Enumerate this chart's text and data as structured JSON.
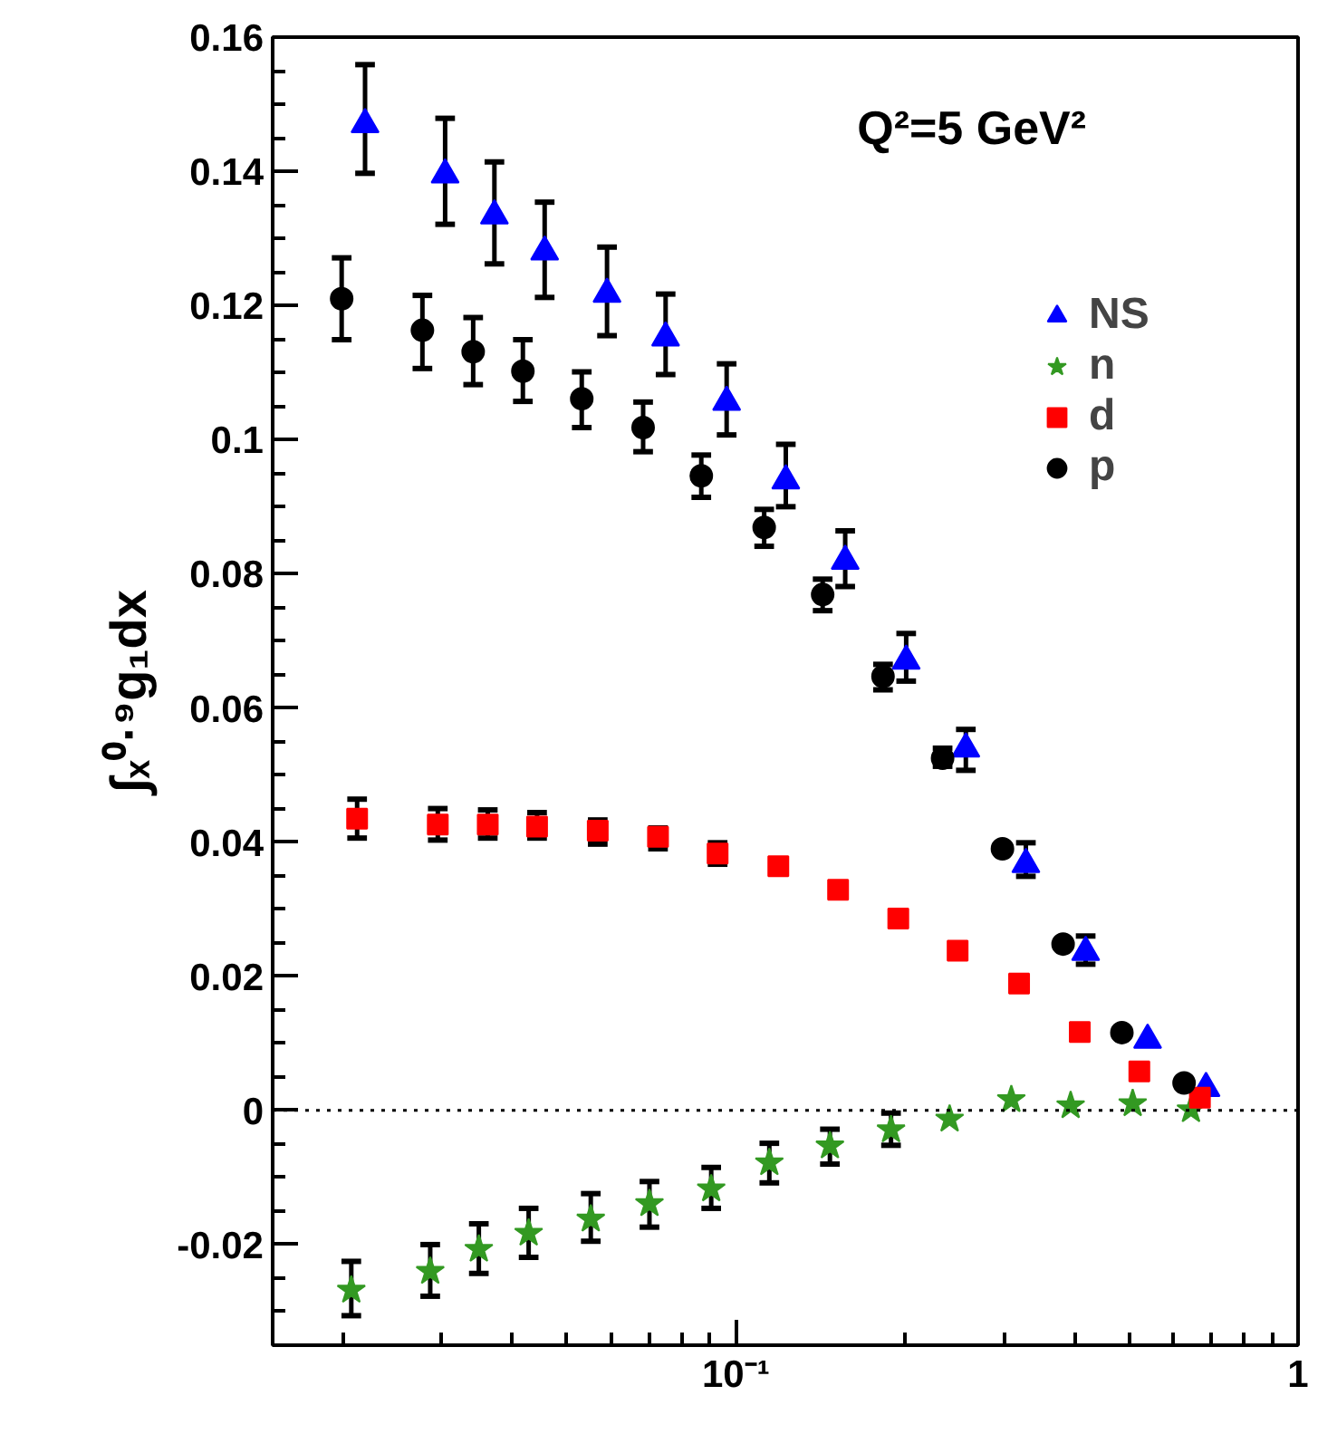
{
  "chart_data": {
    "type": "scatter",
    "ylabel": "∫ₓ⁰·⁹g₁dx",
    "annotations": [
      "Q²=5 GeV²"
    ],
    "log": "x",
    "xlim": [
      0.015,
      1
    ],
    "xticks": [
      {
        "value": 0.1,
        "label": "10⁻¹"
      },
      1
    ],
    "ylim": [
      -0.035,
      0.16
    ],
    "yticks": [
      -0.02,
      0,
      0.02,
      0.04,
      0.06,
      0.08,
      0.1,
      0.12,
      0.14,
      0.16
    ],
    "legend": "top right",
    "ref_lines": [
      {
        "axis": "y",
        "value": 0,
        "line_style": "dotted",
        "color": "#000000"
      }
    ],
    "series": [
      {
        "name": "NS",
        "color": "#0000ff",
        "marker": "triangle",
        "x": [
          0.0219,
          0.0304,
          0.0372,
          0.0457,
          0.059,
          0.075,
          0.0963,
          0.1227,
          0.1565,
          0.2009,
          0.2565,
          0.328,
          0.419,
          0.54,
          0.686
        ],
        "values": [
          0.147,
          0.1395,
          0.1334,
          0.128,
          0.1217,
          0.1152,
          0.1056,
          0.0939,
          0.0819,
          0.067,
          0.0539,
          0.0367,
          0.0236,
          0.0105,
          0.0033
        ],
        "errors": [
          [
            0.1397,
            0.1559
          ],
          [
            0.1321,
            0.1479
          ],
          [
            0.1262,
            0.1414
          ],
          [
            0.1212,
            0.1354
          ],
          [
            0.1155,
            0.1287
          ],
          [
            0.1097,
            0.1217
          ],
          [
            0.1007,
            0.1113
          ],
          [
            0.09,
            0.0993
          ],
          [
            0.0781,
            0.0864
          ],
          [
            0.064,
            0.0711
          ],
          [
            0.0507,
            0.0568
          ],
          [
            0.0349,
            0.0399
          ],
          [
            0.0218,
            0.026
          ],
          null,
          null
        ]
      },
      {
        "name": "n",
        "color": "#339922",
        "marker": "star",
        "x": [
          0.0207,
          0.0286,
          0.0349,
          0.0428,
          0.0552,
          0.0702,
          0.0904,
          0.1147,
          0.147,
          0.1888,
          0.24,
          0.309,
          0.394,
          0.508,
          0.645
        ],
        "values": [
          -0.0268,
          -0.024,
          -0.0207,
          -0.0183,
          -0.0162,
          -0.0139,
          -0.0117,
          -0.0078,
          -0.0053,
          -0.0029,
          -0.0013,
          0.0016,
          0.0007,
          0.001,
          0.0001
        ],
        "errors": [
          [
            -0.0306,
            -0.0225
          ],
          [
            -0.0277,
            -0.02
          ],
          [
            -0.0243,
            -0.0169
          ],
          [
            -0.0219,
            -0.0146
          ],
          [
            -0.0195,
            -0.0124
          ],
          [
            -0.0174,
            -0.0106
          ],
          [
            -0.0146,
            -0.0085
          ],
          [
            -0.0108,
            -0.0049
          ],
          [
            -0.008,
            -0.0028
          ],
          [
            -0.0052,
            -0.0004
          ],
          null,
          null,
          null,
          null,
          null
        ]
      },
      {
        "name": "d",
        "color": "#ff0000",
        "marker": "square",
        "x": [
          0.0212,
          0.0295,
          0.0362,
          0.0443,
          0.0568,
          0.0727,
          0.0928,
          0.119,
          0.152,
          0.1945,
          0.248,
          0.319,
          0.409,
          0.522,
          0.669
        ],
        "values": [
          0.0435,
          0.0426,
          0.0426,
          0.0423,
          0.0417,
          0.0408,
          0.0383,
          0.0364,
          0.0329,
          0.0286,
          0.0238,
          0.0189,
          0.0117,
          0.0058,
          0.0019
        ],
        "errors": [
          [
            0.0406,
            0.0464
          ],
          [
            0.0403,
            0.045
          ],
          [
            0.0406,
            0.0448
          ],
          [
            0.0406,
            0.0444
          ],
          [
            0.0397,
            0.0433
          ],
          [
            0.039,
            0.0421
          ],
          [
            0.0367,
            0.0399
          ],
          null,
          null,
          null,
          null,
          null,
          null,
          null,
          null
        ]
      },
      {
        "name": "p",
        "color": "#000000",
        "marker": "circle",
        "x": [
          0.0199,
          0.0277,
          0.0341,
          0.0418,
          0.0532,
          0.0684,
          0.0868,
          0.1123,
          0.1427,
          0.1827,
          0.2332,
          0.298,
          0.382,
          0.486,
          0.627
        ],
        "values": [
          0.121,
          0.1163,
          0.1131,
          0.1102,
          0.1061,
          0.1018,
          0.0946,
          0.0869,
          0.0769,
          0.0647,
          0.0525,
          0.039,
          0.0248,
          0.0116,
          0.0041
        ],
        "errors": [
          [
            0.1149,
            0.1271
          ],
          [
            0.1106,
            0.1215
          ],
          [
            0.1082,
            0.1182
          ],
          [
            0.1057,
            0.1149
          ],
          [
            0.1018,
            0.1101
          ],
          [
            0.0982,
            0.1056
          ],
          [
            0.0914,
            0.0977
          ],
          [
            0.0841,
            0.0896
          ],
          [
            0.0745,
            0.0792
          ],
          [
            0.0627,
            0.0665
          ],
          [
            0.0513,
            0.054
          ],
          null,
          null,
          null,
          null
        ]
      }
    ]
  }
}
